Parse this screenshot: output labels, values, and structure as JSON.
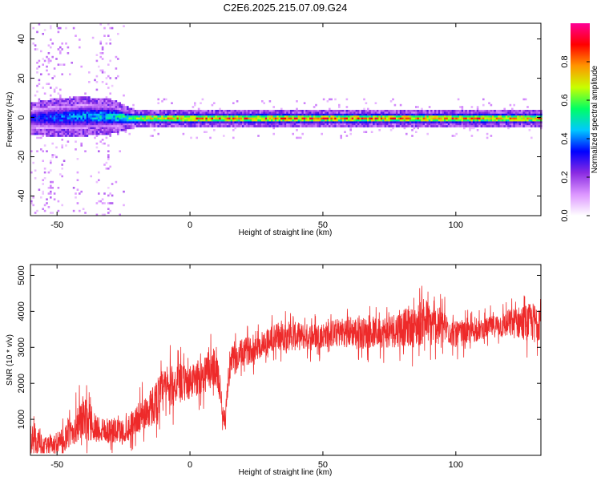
{
  "figure": {
    "title": "C2E6.2025.215.07.09.G24"
  },
  "chart_data": [
    {
      "type": "heatmap",
      "xlabel": "Height of straight line (km)",
      "ylabel": "Frequency (Hz)",
      "xlim": [
        -60,
        132
      ],
      "ylim": [
        -50,
        48
      ],
      "x_ticks": [
        -50,
        0,
        50,
        100
      ],
      "y_ticks": [
        -40,
        -20,
        0,
        20,
        40
      ],
      "colorbar": {
        "label": "Normalized spectral amplitude",
        "range": [
          0,
          1
        ],
        "ticks": [
          0.0,
          0.2,
          0.4,
          0.6,
          0.8
        ],
        "tick_labels": [
          "0.0",
          "0.2",
          "0.4",
          "0.6",
          "0.8"
        ],
        "colors": [
          "#ffffff",
          "#dc96ff",
          "#8a2be2",
          "#0000ff",
          "#00c8ff",
          "#00ff64",
          "#c8ff00",
          "#ff9600",
          "#ff0000",
          "#ff0096"
        ]
      },
      "signal_band": [
        {
          "x": -60,
          "center": 0,
          "width": 8,
          "amp": 0.35
        },
        {
          "x": -50,
          "center": 0.5,
          "width": 10,
          "amp": 0.4
        },
        {
          "x": -40,
          "center": 1,
          "width": 10,
          "amp": 0.45
        },
        {
          "x": -30,
          "center": 1,
          "width": 9,
          "amp": 0.5
        },
        {
          "x": -22,
          "center": 0,
          "width": 5,
          "amp": 0.6
        },
        {
          "x": -15,
          "center": 0,
          "width": 4,
          "amp": 0.75
        },
        {
          "x": 0,
          "center": 0,
          "width": 4,
          "amp": 0.85
        },
        {
          "x": 50,
          "center": 0,
          "width": 4,
          "amp": 0.85
        },
        {
          "x": 100,
          "center": 0,
          "width": 4,
          "amp": 0.85
        },
        {
          "x": 132,
          "center": 0,
          "width": 4,
          "amp": 0.8
        }
      ],
      "noise_region": {
        "x_range": [
          -60,
          -25
        ],
        "freq_range": [
          -50,
          48
        ]
      }
    },
    {
      "type": "line",
      "xlabel": "Height of straight line (km)",
      "ylabel": "SNR (10 * v/v)",
      "xlim": [
        -60,
        132
      ],
      "ylim": [
        0,
        5300
      ],
      "x_ticks": [
        -50,
        0,
        50,
        100
      ],
      "y_ticks": [
        1000,
        2000,
        3000,
        4000,
        5000
      ],
      "series": [
        {
          "color": "#ee2a2a",
          "x": [
            -60,
            -55,
            -50,
            -45,
            -40,
            -35,
            -30,
            -25,
            -20,
            -15,
            -10,
            -5,
            0,
            5,
            10,
            13,
            15,
            20,
            25,
            30,
            35,
            40,
            45,
            50,
            55,
            60,
            65,
            70,
            75,
            80,
            85,
            88,
            90,
            95,
            100,
            105,
            110,
            115,
            120,
            125,
            130,
            132
          ],
          "y": [
            500,
            250,
            300,
            600,
            1050,
            750,
            700,
            650,
            1000,
            1300,
            1800,
            2000,
            2000,
            2250,
            2500,
            900,
            2550,
            2850,
            3000,
            3200,
            3350,
            3300,
            3300,
            3350,
            3400,
            3450,
            3400,
            3400,
            3450,
            3550,
            3550,
            3800,
            3650,
            3600,
            3350,
            3400,
            3500,
            3600,
            3650,
            3700,
            3700,
            3800
          ],
          "noise_amplitude": [
            550,
            300,
            350,
            500,
            800,
            500,
            450,
            450,
            500,
            700,
            800,
            700,
            600,
            650,
            700,
            300,
            550,
            500,
            450,
            500,
            550,
            500,
            450,
            450,
            500,
            550,
            550,
            500,
            600,
            650,
            700,
            900,
            700,
            600,
            450,
            400,
            350,
            400,
            500,
            600,
            700,
            700
          ]
        }
      ]
    }
  ]
}
